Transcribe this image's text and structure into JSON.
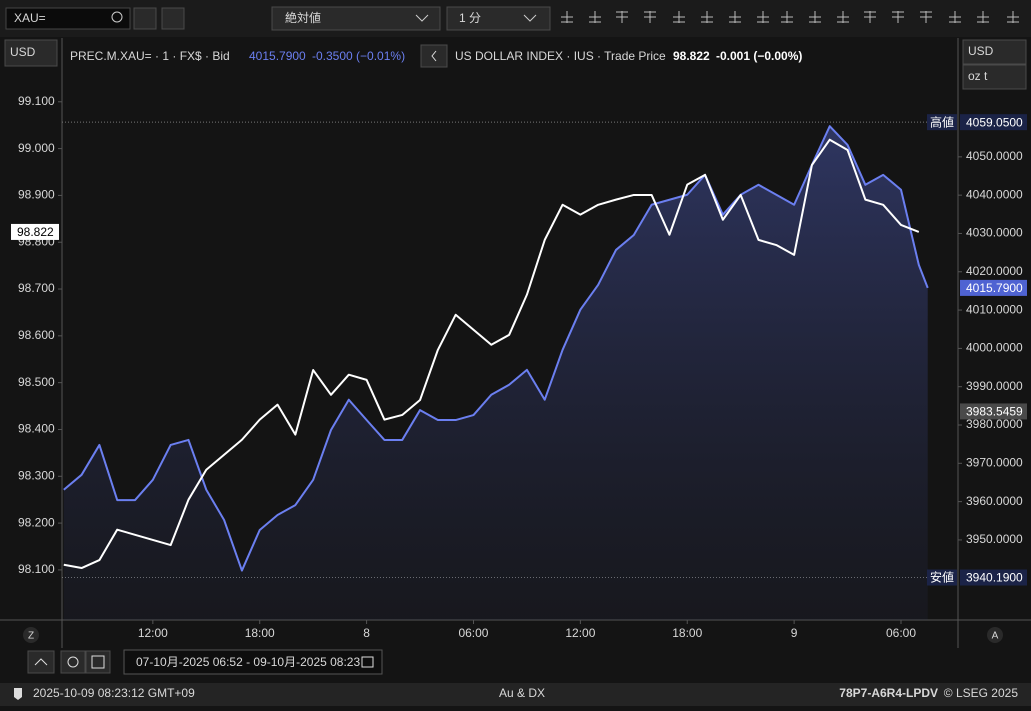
{
  "toolbar": {
    "search": "XAU=",
    "mode": "絶対値",
    "interval": "1 分"
  },
  "left_unit": "USD",
  "right_units": [
    "USD",
    "oz t"
  ],
  "chart_data": {
    "type": "line",
    "x": [
      7,
      8,
      9,
      10,
      11,
      12,
      13,
      14,
      15,
      16,
      17,
      18,
      19,
      20,
      21,
      22,
      23,
      24,
      25,
      26,
      27,
      28,
      29,
      30,
      31,
      32,
      33,
      34,
      35,
      36,
      37,
      38,
      39,
      40,
      41,
      42,
      43,
      44,
      45,
      46,
      47,
      48,
      49,
      50,
      51,
      52,
      53,
      54,
      55,
      55.5
    ],
    "xlim": [
      6.9,
      57.2
    ],
    "xticks": [
      {
        "value": 12,
        "label": "12:00"
      },
      {
        "value": 18,
        "label": "18:00"
      },
      {
        "value": 24,
        "label": "8"
      },
      {
        "value": 30,
        "label": "06:00"
      },
      {
        "value": 36,
        "label": "12:00"
      },
      {
        "value": 42,
        "label": "18:00"
      },
      {
        "value": 48,
        "label": "9"
      },
      {
        "value": 54,
        "label": "06:00"
      }
    ],
    "ylim": [
      97.993,
      99.232
    ],
    "yticks": [
      {
        "value": 98.1,
        "label": "98.100"
      },
      {
        "value": 98.2,
        "label": "98.200"
      },
      {
        "value": 98.3,
        "label": "98.300"
      },
      {
        "value": 98.4,
        "label": "98.400"
      },
      {
        "value": 98.5,
        "label": "98.500"
      },
      {
        "value": 98.6,
        "label": "98.600"
      },
      {
        "value": 98.7,
        "label": "98.700"
      },
      {
        "value": 98.8,
        "label": "98.800"
      },
      {
        "value": 98.9,
        "label": "98.900"
      },
      {
        "value": 99.0,
        "label": "99.000"
      },
      {
        "value": 99.1,
        "label": "99.100"
      }
    ],
    "y2lim": [
      3929.1,
      4080.5
    ],
    "y2ticks": [
      {
        "value": 3950,
        "label": "3950.0000"
      },
      {
        "value": 3960,
        "label": "3960.0000"
      },
      {
        "value": 3970,
        "label": "3970.0000"
      },
      {
        "value": 3980,
        "label": "3980.0000"
      },
      {
        "value": 3990,
        "label": "3990.0000"
      },
      {
        "value": 4000,
        "label": "4000.0000"
      },
      {
        "value": 4010,
        "label": "4010.0000"
      },
      {
        "value": 4020,
        "label": "4020.0000"
      },
      {
        "value": 4030,
        "label": "4030.0000"
      },
      {
        "value": 4040,
        "label": "4040.0000"
      },
      {
        "value": 4050,
        "label": "4050.0000"
      }
    ],
    "grid": false,
    "series": [
      {
        "name": "PREC.M.XAU= · 1 · FX$ · Bid",
        "color": "#6b7ff0",
        "axis": "y2",
        "area": true,
        "last": "4015.7900",
        "change": "-0.3500 (−0.01%)",
        "values": [
          3963.1,
          3967.0,
          3974.8,
          3960.4,
          3960.4,
          3965.7,
          3974.8,
          3976.1,
          3963.1,
          3955.2,
          3942.0,
          3952.6,
          3956.5,
          3959.1,
          3965.7,
          3978.7,
          3986.6,
          3981.3,
          3976.1,
          3976.1,
          3983.9,
          3981.3,
          3981.3,
          3982.6,
          3987.9,
          3990.5,
          3994.4,
          3986.6,
          3999.6,
          4010.1,
          4016.6,
          4025.7,
          4029.6,
          4037.5,
          4038.8,
          4040.1,
          4045.3,
          4034.9,
          4040.1,
          4042.7,
          4040.1,
          4037.5,
          4047.9,
          4058.0,
          4053.1,
          4042.7,
          4045.3,
          4041.4,
          4021.8,
          4015.79
        ]
      },
      {
        "name": "US DOLLAR INDEX · IUS · Trade Price",
        "color": "#ffffff",
        "axis": "y",
        "area": false,
        "last": "98.822",
        "change": "-0.001 (−0.00%)",
        "values": [
          98.111,
          98.104,
          98.121,
          98.186,
          98.175,
          98.164,
          98.153,
          98.25,
          98.314,
          98.346,
          98.378,
          98.421,
          98.453,
          98.389,
          98.527,
          98.474,
          98.517,
          98.506,
          98.421,
          98.431,
          98.463,
          98.57,
          98.645,
          98.613,
          98.581,
          98.602,
          98.688,
          98.805,
          98.88,
          98.859,
          98.88,
          98.891,
          98.901,
          98.901,
          98.816,
          98.923,
          98.944,
          98.848,
          98.901,
          98.805,
          98.794,
          98.773,
          98.965,
          99.019,
          98.997,
          98.891,
          98.88,
          98.837,
          98.822,
          null
        ]
      }
    ],
    "y_markers": [
      {
        "value": 98.822,
        "label": "98.822",
        "color": "#ffffff"
      }
    ],
    "y2_markers": [
      {
        "name": "高値",
        "value": 4059.05,
        "label": "4059.0500",
        "color": "#1b2347"
      },
      {
        "value": 4015.79,
        "label": "4015.7900",
        "color": "#4f63d2"
      },
      {
        "value": 3983.5459,
        "label": "3983.5459",
        "color": "#4a4a4a"
      },
      {
        "name": "安値",
        "value": 3940.19,
        "label": "3940.1900",
        "color": "#1b2347"
      }
    ]
  },
  "footer": {
    "left_button": "Z",
    "right_button": "A",
    "range": "07-10月-2025 06:52 - 09-10月-2025 08:23"
  },
  "status": {
    "time": "2025-10-09 08:23:12 GMT+09",
    "center": "Au & DX",
    "code": "78P7-A6R4-LPDV",
    "copyright": "© LSEG 2025"
  }
}
